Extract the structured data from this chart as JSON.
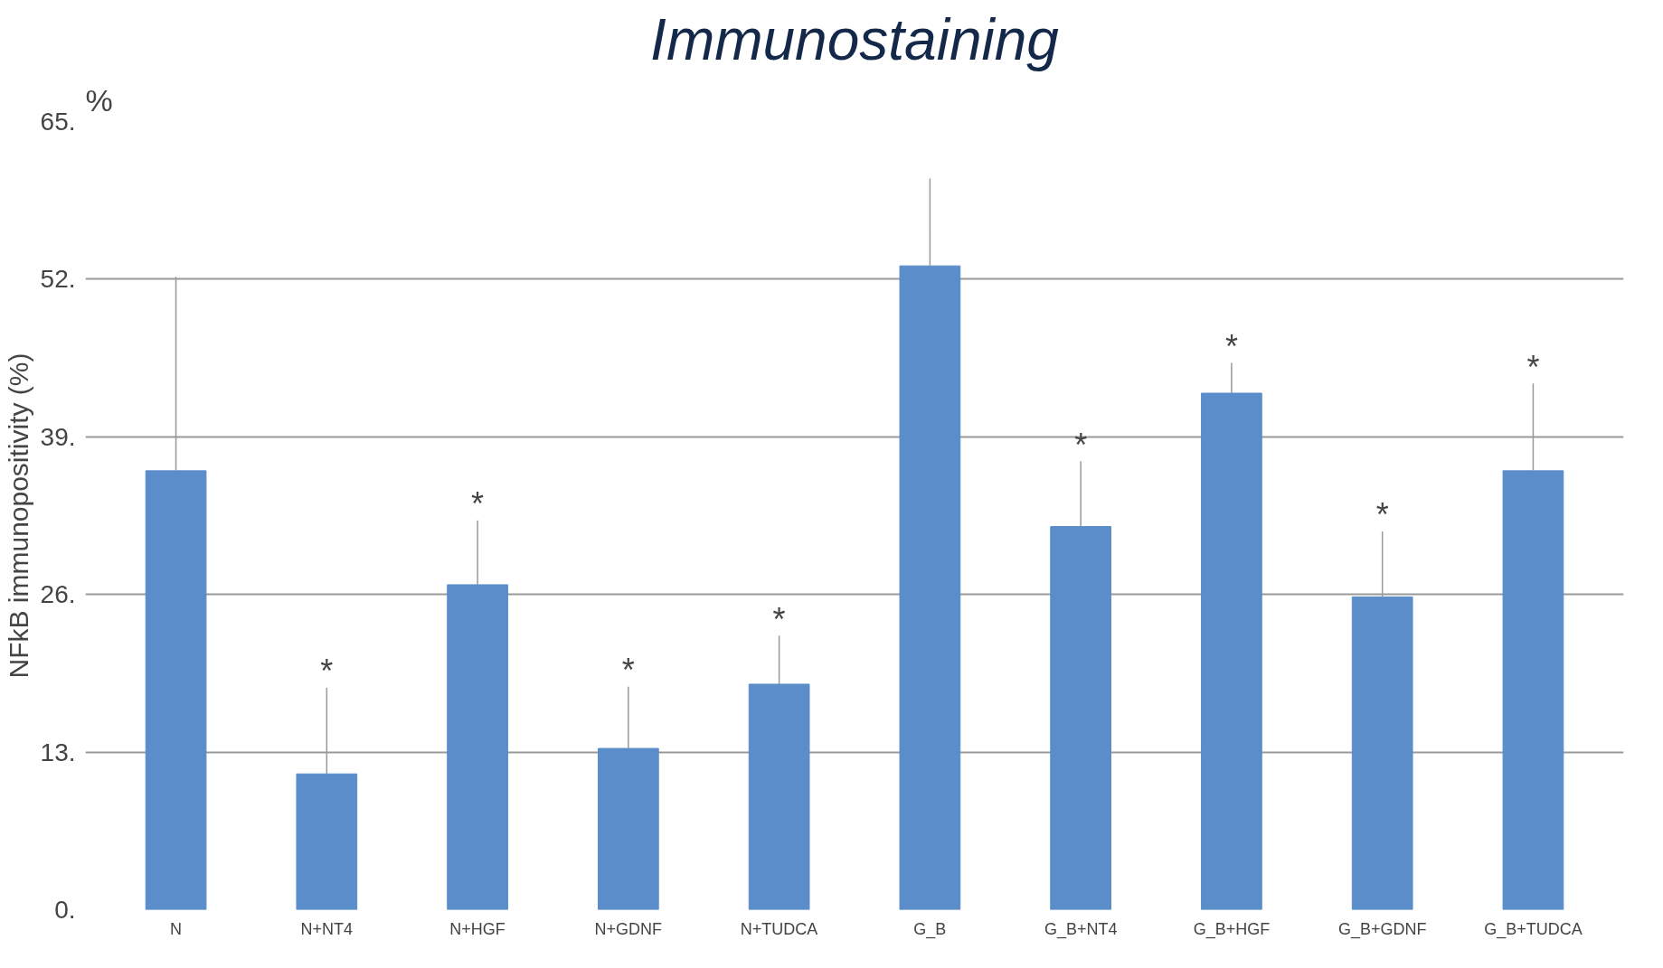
{
  "chart_data": {
    "type": "bar",
    "title": "Immunostaining",
    "ylabel": "NFkB immunopositivity (%)",
    "categories": [
      "N",
      "N+NT4",
      "N+HGF",
      "N+GDNF",
      "N+TUDCA",
      "G_B",
      "G_B+NT4",
      "G_B+HGF",
      "G_B+GDNF",
      "G_B+TUDCA"
    ],
    "values": [
      36.2,
      11.2,
      26.8,
      13.3,
      18.6,
      53.1,
      31.6,
      42.6,
      25.8,
      36.2
    ],
    "errors": [
      [
        36.2,
        52.2
      ],
      [
        11.2,
        18.3
      ],
      [
        26.8,
        32.1
      ],
      [
        13.3,
        18.4
      ],
      [
        18.6,
        22.6
      ],
      [
        53.1,
        60.3
      ],
      [
        31.6,
        37.0
      ],
      [
        42.6,
        45.1
      ],
      [
        25.8,
        31.2
      ],
      [
        36.2,
        43.4
      ]
    ],
    "color": "#5a8dc9",
    "ylim": [
      0,
      65
    ],
    "yticks": [
      {
        "value": 0,
        "label": "0."
      },
      {
        "value": 13,
        "label": "13."
      },
      {
        "value": 26,
        "label": "26."
      },
      {
        "value": 39,
        "label": "39."
      },
      {
        "value": 52,
        "label": "52."
      },
      {
        "value": 65,
        "label": "65."
      }
    ],
    "grid": "y",
    "value_labels": [
      null,
      "*",
      "*",
      "*",
      "*",
      null,
      "*",
      "*",
      "*",
      "*"
    ],
    "annotations": [
      "%"
    ]
  }
}
